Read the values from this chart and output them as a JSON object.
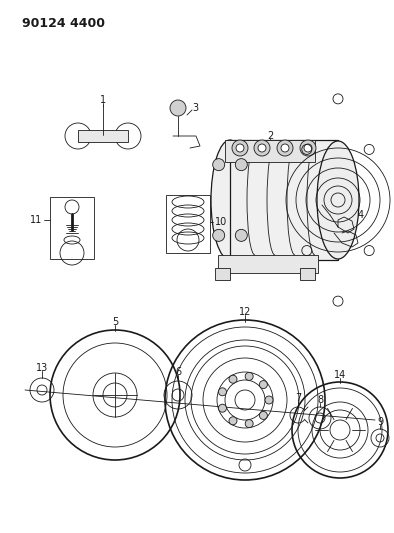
{
  "title": "90124 4400",
  "bg_color": "#ffffff",
  "line_color": "#1a1a1a",
  "fig_width": 3.94,
  "fig_height": 5.33,
  "dpi": 100
}
